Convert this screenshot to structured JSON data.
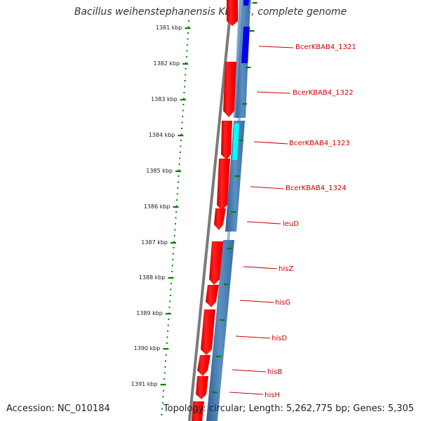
{
  "header": {
    "title": "Bacillus weihenstephanensis KBAB4, complete genome"
  },
  "footer": {
    "accession": "Accession: NC_010184",
    "topology": "Topology: circular; Length: 5,262,775 bp; Genes: 5,305"
  },
  "ruler": {
    "ticks": [
      "1381 kbp",
      "1382 kbp",
      "1383 kbp",
      "1384 kbp",
      "1385 kbp",
      "1386 kbp",
      "1387 kbp",
      "1388 kbp",
      "1389 kbp",
      "1390 kbp",
      "1391 kbp"
    ]
  },
  "genes": [
    {
      "label": "BcerKBAB4_1321"
    },
    {
      "label": "BcerKBAB4_1322"
    },
    {
      "label": "BcerKBAB4_1323"
    },
    {
      "label": "BcerKBAB4_1324"
    },
    {
      "label": "leuD"
    },
    {
      "label": "hisZ"
    },
    {
      "label": "hisG"
    },
    {
      "label": "hisD"
    },
    {
      "label": "hisB"
    },
    {
      "label": "hisH"
    }
  ],
  "colors": {
    "forward_cds": "#ff0000",
    "reverse_cds_dark": "#0000ee",
    "reverse_cds_cyan": "#00ffff",
    "backbone": "#808080",
    "ruler": "#008000",
    "gene_label": "#cc0000",
    "track_blue": "#4a80b8"
  }
}
